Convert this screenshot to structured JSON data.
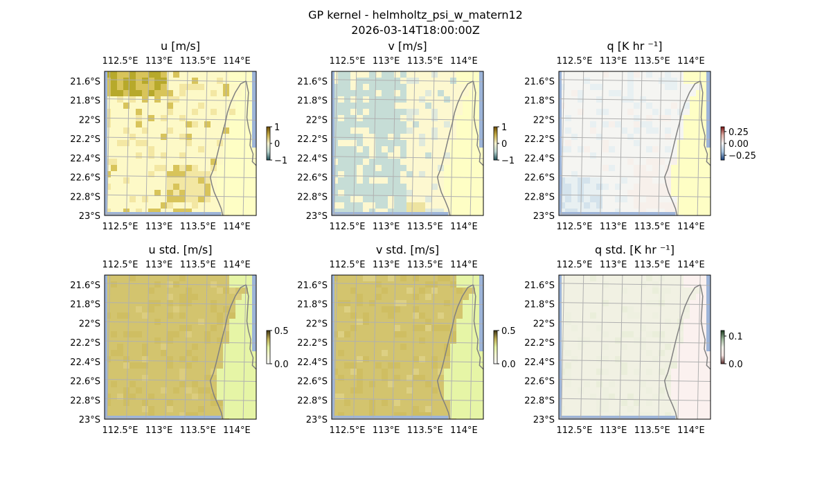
{
  "figure": {
    "title": "GP kernel - helmholtz_psi_w_matern12",
    "subtitle": "2026-03-14T18:00:00Z"
  },
  "colors": {
    "land": "#fefec5",
    "ocean_edge": "#9db4d8",
    "gridline": "#b0b0b0",
    "coast": "#808080"
  },
  "chart_data": [
    {
      "type": "heatmap",
      "id": "u",
      "title": "u [m/s]",
      "xticks": [
        "112.5°E",
        "113°E",
        "113.5°E",
        "114°E"
      ],
      "yticks": [
        "21.6°S",
        "21.8°S",
        "22°S",
        "22.2°S",
        "22.4°S",
        "22.6°S",
        "22.8°S",
        "23°S"
      ],
      "xlim": [
        112.3,
        114.25
      ],
      "ylim": [
        -23.0,
        -21.5
      ],
      "colorbar": {
        "ticks": [
          {
            "v": 1,
            "label": "1"
          },
          {
            "v": 0,
            "label": "0"
          },
          {
            "v": -1,
            "label": "−1"
          }
        ],
        "range": [
          -1,
          1
        ]
      },
      "field_colors": [
        "#fdf9c7",
        "#f3e7a3",
        "#d8c45a",
        "#b7a92b"
      ]
    },
    {
      "type": "heatmap",
      "id": "v",
      "title": "v [m/s]",
      "xticks": [
        "112.5°E",
        "113°E",
        "113.5°E",
        "114°E"
      ],
      "yticks": [
        "21.6°S",
        "21.8°S",
        "22°S",
        "22.2°S",
        "22.4°S",
        "22.6°S",
        "22.8°S",
        "23°S"
      ],
      "xlim": [
        112.3,
        114.25
      ],
      "ylim": [
        -23.0,
        -21.5
      ],
      "colorbar": {
        "ticks": [
          {
            "v": 1,
            "label": "1"
          },
          {
            "v": 0,
            "label": "0"
          },
          {
            "v": -1,
            "label": "−1"
          }
        ],
        "range": [
          -1,
          1
        ]
      },
      "field_colors": [
        "#fdf8d0",
        "#dfe9dc",
        "#c6ddd6",
        "#ede3a0"
      ]
    },
    {
      "type": "heatmap",
      "id": "q",
      "title": "q [K hr ⁻¹]",
      "xticks": [
        "112.5°E",
        "113°E",
        "113.5°E",
        "114°E"
      ],
      "yticks": [
        "21.6°S",
        "21.8°S",
        "22°S",
        "22.2°S",
        "22.4°S",
        "22.6°S",
        "22.8°S",
        "23°S"
      ],
      "xlim": [
        112.3,
        114.25
      ],
      "ylim": [
        -23.0,
        -21.5
      ],
      "colorbar": {
        "ticks": [
          {
            "v": 0.25,
            "label": "0.25"
          },
          {
            "v": 0.0,
            "label": "0.00"
          },
          {
            "v": -0.25,
            "label": "−0.25"
          }
        ],
        "range": [
          -0.35,
          0.35
        ]
      },
      "field_colors": [
        "#f4f4f6",
        "#e6eef6",
        "#f6eeee",
        "#cfe0ef"
      ]
    },
    {
      "type": "heatmap",
      "id": "u_std",
      "title": "u std. [m/s]",
      "xticks": [
        "112.5°E",
        "113°E",
        "113.5°E",
        "114°E"
      ],
      "yticks": [
        "21.6°S",
        "21.8°S",
        "22°S",
        "22.2°S",
        "22.4°S",
        "22.6°S",
        "22.8°S",
        "23°S"
      ],
      "xlim": [
        112.3,
        114.25
      ],
      "ylim": [
        -23.0,
        -21.5
      ],
      "colorbar": {
        "ticks": [
          {
            "v": 0.5,
            "label": "0.5"
          },
          {
            "v": 0.0,
            "label": "0.0"
          }
        ],
        "range": [
          0,
          0.5
        ]
      },
      "field_colors": [
        "#d3c46e",
        "#cfbe62",
        "#dccd7e",
        "#e6f5a6"
      ]
    },
    {
      "type": "heatmap",
      "id": "v_std",
      "title": "v std. [m/s]",
      "xticks": [
        "112.5°E",
        "113°E",
        "113.5°E",
        "114°E"
      ],
      "yticks": [
        "21.6°S",
        "21.8°S",
        "22°S",
        "22.2°S",
        "22.4°S",
        "22.6°S",
        "22.8°S",
        "23°S"
      ],
      "xlim": [
        112.3,
        114.25
      ],
      "ylim": [
        -23.0,
        -21.5
      ],
      "colorbar": {
        "ticks": [
          {
            "v": 0.5,
            "label": "0.5"
          },
          {
            "v": 0.0,
            "label": "0.0"
          }
        ],
        "range": [
          0,
          0.5
        ]
      },
      "field_colors": [
        "#d3c46e",
        "#cfbe62",
        "#ddd083",
        "#e6f5a6"
      ]
    },
    {
      "type": "heatmap",
      "id": "q_std",
      "title": "q std. [K hr ⁻¹]",
      "xticks": [
        "112.5°E",
        "113°E",
        "113.5°E",
        "114°E"
      ],
      "yticks": [
        "21.6°S",
        "21.8°S",
        "22°S",
        "22.2°S",
        "22.4°S",
        "22.6°S",
        "22.8°S",
        "23°S"
      ],
      "xlim": [
        112.3,
        114.25
      ],
      "ylim": [
        -23.0,
        -21.5
      ],
      "colorbar": {
        "ticks": [
          {
            "v": 0.1,
            "label": "0.1"
          },
          {
            "v": 0.0,
            "label": "0.0"
          }
        ],
        "range": [
          0,
          0.12
        ]
      },
      "field_colors": [
        "#efefe6",
        "#eceee2",
        "#e8ecdc",
        "#fbf1ef"
      ]
    }
  ]
}
